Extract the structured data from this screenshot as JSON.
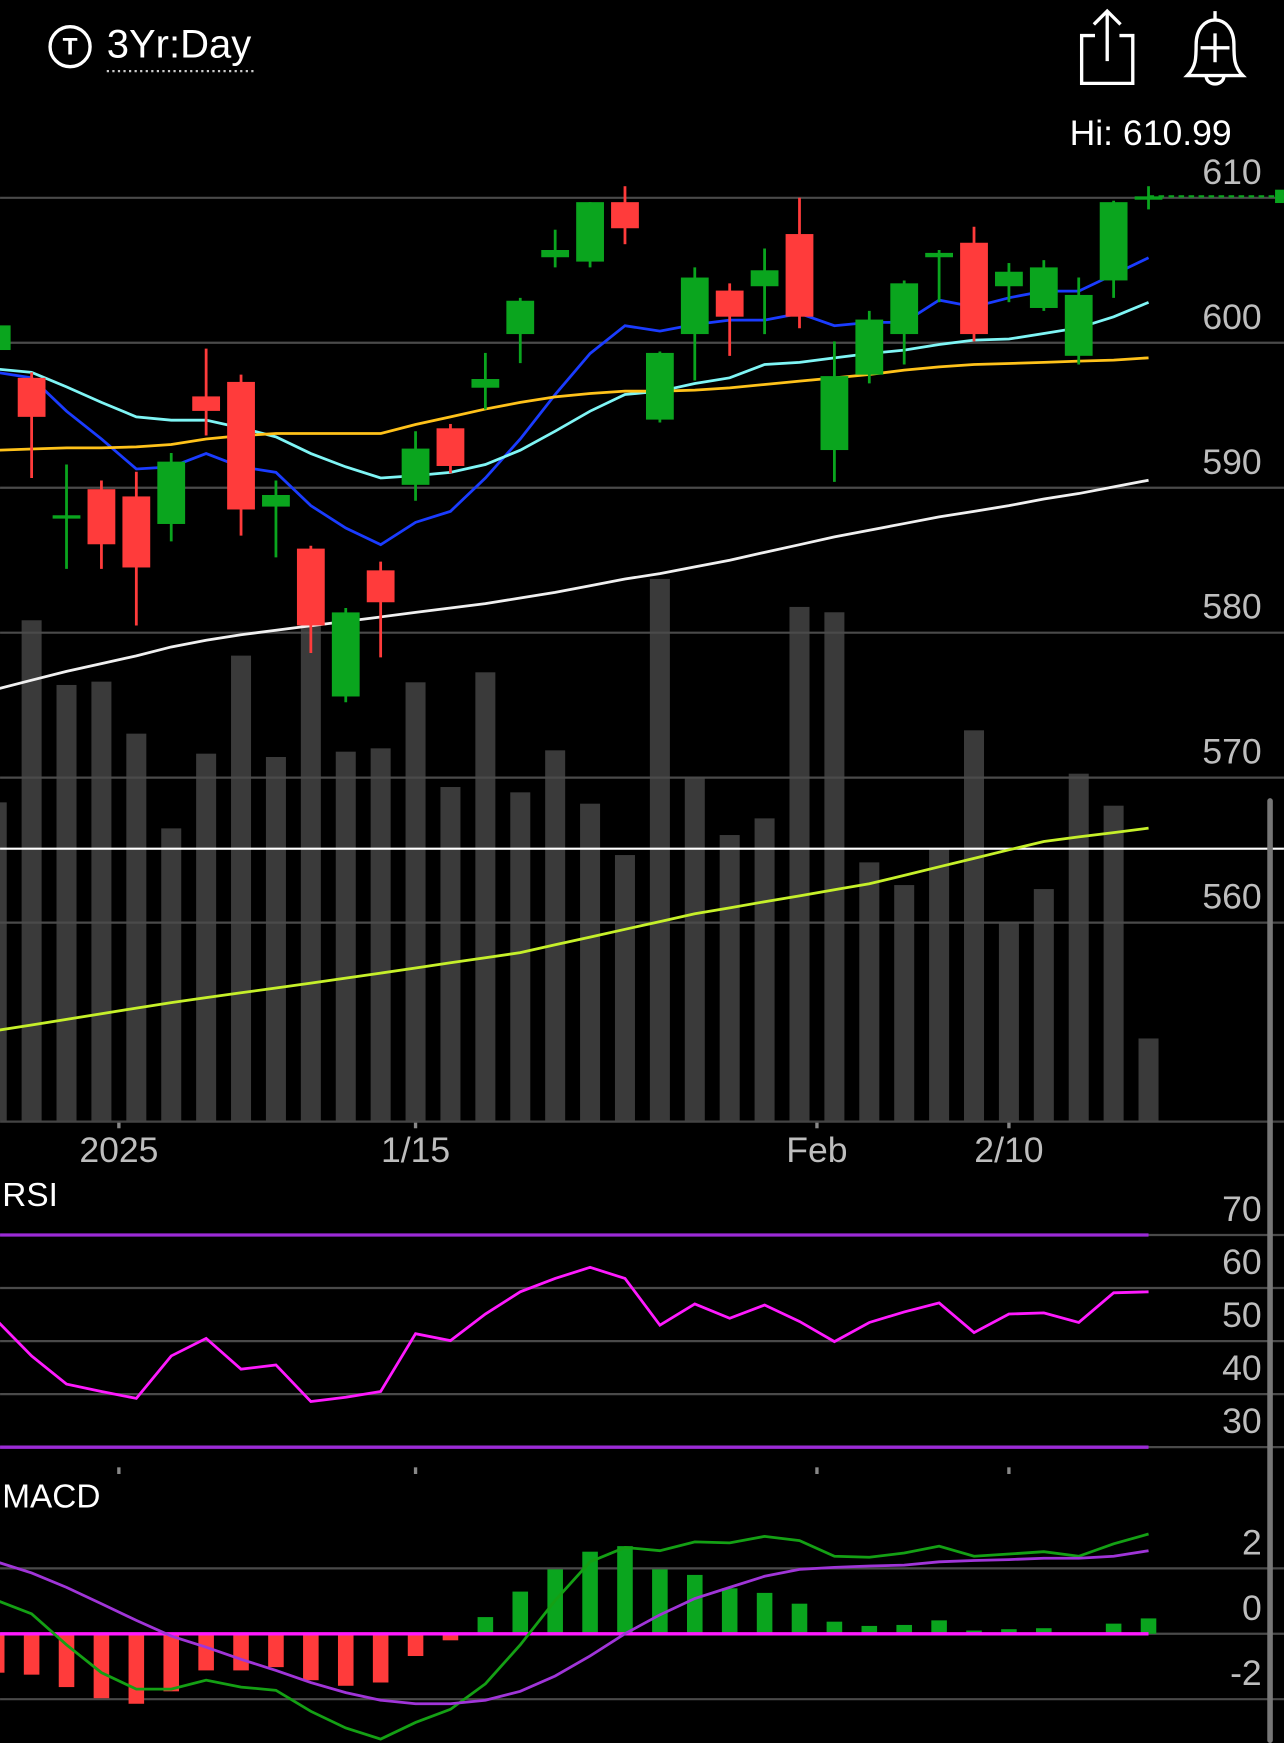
{
  "header": {
    "symbol_icon": "T",
    "period": "3Yr:Day"
  },
  "chart_data": [
    {
      "type": "candlestick",
      "high_label": "Hi: 610.99",
      "xlim": [
        0.0955,
        36.88
      ],
      "xticks": [
        {
          "value": 3.5,
          "label": "2025"
        },
        {
          "value": 12,
          "label": "1/15"
        },
        {
          "value": 23.5,
          "label": "Feb"
        },
        {
          "value": 29,
          "label": "2/10"
        }
      ],
      "ylim": [
        546.35,
        612.91
      ],
      "yticks": [
        610,
        600,
        590,
        580,
        570,
        560
      ],
      "grid": true,
      "up_color": "#0aa51e",
      "down_color": "#ff3b3b",
      "open": [
        599.5,
        597.58,
        587.9,
        589.9,
        589.4,
        587.5,
        596.3,
        597.3,
        588.7,
        585.8,
        575.6,
        584.3,
        590.2,
        594.1,
        596.9,
        600.6,
        605.9,
        605.6,
        609.7,
        594.7,
        600.6,
        603.6,
        603.9,
        607.5,
        592.6,
        597.8,
        600.6,
        605.9,
        606.9,
        603.9,
        602.4,
        599.1,
        604.3,
        610.0
      ],
      "high": [
        601.5,
        597.96,
        591.6,
        590.5,
        591.1,
        592.4,
        599.6,
        597.8,
        590.5,
        586.0,
        581.7,
        584.9,
        593.9,
        594.4,
        599.3,
        603.1,
        607.8,
        609.7,
        610.8,
        599.4,
        605.2,
        604.1,
        606.5,
        610.0,
        600.1,
        602.2,
        604.3,
        606.4,
        608.0,
        605.5,
        605.7,
        604.5,
        609.8,
        610.8
      ],
      "low": [
        599.3,
        590.67,
        584.4,
        584.4,
        580.5,
        586.3,
        593.6,
        586.7,
        585.2,
        578.6,
        575.2,
        578.3,
        589.1,
        591.0,
        595.4,
        598.6,
        605.2,
        605.2,
        606.8,
        594.5,
        597.4,
        599.1,
        600.6,
        601.0,
        590.4,
        597.2,
        598.5,
        602.8,
        600.1,
        602.8,
        602.2,
        598.5,
        603.1,
        609.2
      ],
      "close": [
        601.2,
        594.89,
        588.1,
        586.1,
        584.5,
        591.8,
        595.3,
        588.5,
        589.5,
        580.5,
        581.4,
        582.1,
        592.7,
        591.5,
        597.5,
        602.9,
        606.4,
        609.7,
        607.9,
        599.3,
        604.5,
        601.8,
        605.0,
        601.8,
        597.7,
        601.6,
        604.1,
        606.2,
        600.6,
        604.9,
        605.2,
        603.3,
        609.7,
        610.1
      ],
      "overlays": [
        {
          "color": "#1a3cff",
          "values": [
            597.96,
            597.58,
            595.28,
            593.36,
            591.29,
            591.44,
            592.36,
            591.44,
            591.06,
            588.76,
            587.22,
            586.07,
            587.61,
            588.37,
            590.67,
            593.36,
            596.43,
            599.26,
            601.18,
            600.8,
            601.26,
            601.56,
            601.56,
            602.02,
            601.18,
            601.41,
            601.41,
            602.94,
            602.48,
            603.1,
            603.56,
            603.56,
            604.71,
            605.86
          ]
        },
        {
          "color": "#7ff5f5",
          "values": [
            598.19,
            597.96,
            596.96,
            595.89,
            594.89,
            594.66,
            594.66,
            594.13,
            593.51,
            592.36,
            591.44,
            590.67,
            590.83,
            591.06,
            591.6,
            592.59,
            593.9,
            595.28,
            596.43,
            596.66,
            597.19,
            597.58,
            598.5,
            598.65,
            598.96,
            599.26,
            599.49,
            599.88,
            600.18,
            600.26,
            600.64,
            601.03,
            601.79,
            602.79
          ]
        },
        {
          "color": "#ffc21a",
          "values": [
            592.59,
            592.67,
            592.75,
            592.75,
            592.82,
            592.98,
            593.36,
            593.59,
            593.74,
            593.74,
            593.74,
            593.74,
            594.36,
            594.89,
            595.43,
            595.89,
            596.27,
            596.5,
            596.66,
            596.66,
            596.73,
            596.89,
            597.12,
            597.35,
            597.58,
            597.81,
            598.11,
            598.34,
            598.5,
            598.57,
            598.65,
            598.73,
            598.8,
            598.96
          ]
        },
        {
          "color": "#f0f0f0",
          "values": [
            576.1,
            576.72,
            577.33,
            577.87,
            578.4,
            579.02,
            579.48,
            579.86,
            580.17,
            580.48,
            580.78,
            581.09,
            581.4,
            581.7,
            582.01,
            582.39,
            582.78,
            583.24,
            583.7,
            584.08,
            584.54,
            585.0,
            585.54,
            586.07,
            586.61,
            587.07,
            587.53,
            587.99,
            588.37,
            588.76,
            589.22,
            589.6,
            590.06,
            590.52
          ]
        },
        {
          "color": "#c6f02a",
          "values": [
            552.56,
            552.94,
            553.33,
            553.71,
            554.1,
            554.48,
            554.82,
            555.16,
            555.49,
            555.83,
            556.17,
            556.52,
            556.87,
            557.23,
            557.58,
            557.93,
            558.47,
            559.0,
            559.54,
            560.07,
            560.61,
            561.02,
            561.44,
            561.85,
            562.27,
            562.68,
            563.26,
            563.85,
            564.43,
            565.02,
            565.6,
            565.91,
            566.21,
            566.52
          ]
        }
      ],
      "reference_line": {
        "value": 565.1,
        "color": "#ffffff"
      },
      "volume": {
        "color": "#3a3a3a",
        "ylim": [
          0,
          100
        ],
        "values": [
          47.7,
          75.0,
          65.3,
          65.8,
          58.0,
          43.8,
          55.0,
          69.7,
          54.5,
          74.7,
          55.3,
          55.8,
          65.7,
          50.0,
          67.2,
          49.2,
          55.5,
          47.5,
          39.8,
          81.2,
          51.3,
          42.8,
          45.3,
          77.0,
          76.2,
          38.7,
          35.3,
          40.8,
          58.5,
          29.8,
          34.7,
          52.0,
          47.2,
          12.3
        ]
      }
    },
    {
      "type": "rsi",
      "title": "RSI",
      "ylim": [
        26.2,
        74.4
      ],
      "yticks": [
        70,
        60,
        50,
        40,
        30
      ],
      "bands": [
        70,
        30
      ],
      "band_color": "#9b2bd6",
      "series": [
        {
          "color": "#ff1aff",
          "values": [
            53.9,
            47.2,
            41.9,
            40.5,
            39.2,
            47.2,
            50.5,
            44.7,
            45.5,
            38.6,
            39.4,
            40.5,
            51.4,
            50.1,
            55.1,
            59.3,
            61.8,
            63.9,
            61.8,
            53.0,
            57.0,
            54.3,
            56.8,
            53.7,
            49.9,
            53.5,
            55.5,
            57.2,
            51.6,
            55.1,
            55.3,
            53.5,
            59.1,
            59.3
          ]
        }
      ]
    },
    {
      "type": "macd",
      "title": "MACD",
      "ylim": [
        -3.34,
        4.58
      ],
      "yticks": [
        2,
        0,
        -2
      ],
      "zero_color": "#ff1aff",
      "histogram": {
        "up_color": "#0aa51e",
        "down_color": "#ff3b3b",
        "values": [
          -1.19,
          -1.25,
          -1.63,
          -1.97,
          -2.14,
          -1.76,
          -1.12,
          -1.12,
          -1.02,
          -1.42,
          -1.59,
          -1.49,
          -0.68,
          -0.2,
          0.51,
          1.29,
          1.97,
          2.51,
          2.68,
          1.97,
          1.8,
          1.39,
          1.25,
          0.92,
          0.37,
          0.24,
          0.27,
          0.41,
          0.1,
          0.14,
          0.17,
          0.02,
          0.31,
          0.47
        ]
      },
      "series": [
        {
          "color": "#14a014",
          "values": [
            1.02,
            0.61,
            -0.34,
            -1.19,
            -1.69,
            -1.69,
            -1.42,
            -1.63,
            -1.73,
            -2.37,
            -2.88,
            -3.22,
            -2.71,
            -2.31,
            -1.53,
            -0.34,
            1.02,
            2.2,
            2.64,
            2.54,
            2.81,
            2.78,
            2.98,
            2.85,
            2.37,
            2.34,
            2.47,
            2.68,
            2.37,
            2.44,
            2.51,
            2.37,
            2.75,
            3.05
          ]
        },
        {
          "color": "#a035d8",
          "values": [
            2.2,
            1.86,
            1.42,
            0.92,
            0.41,
            -0.07,
            -0.41,
            -0.78,
            -1.12,
            -1.49,
            -1.8,
            -2.03,
            -2.14,
            -2.14,
            -2.03,
            -1.76,
            -1.29,
            -0.68,
            0,
            0.58,
            1.08,
            1.42,
            1.76,
            1.97,
            2.03,
            2.07,
            2.1,
            2.2,
            2.24,
            2.27,
            2.31,
            2.31,
            2.37,
            2.54
          ]
        }
      ]
    }
  ]
}
